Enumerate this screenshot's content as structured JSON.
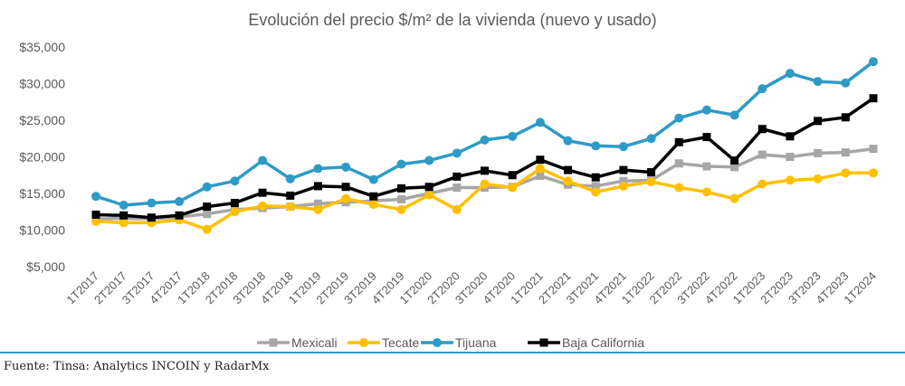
{
  "chart_data": {
    "type": "line",
    "title": "Evolución del precio $/m² de la vivienda (nuevo y usado)",
    "xlabel": "",
    "ylabel": "",
    "ylim": [
      5000,
      35000
    ],
    "yticks": [
      5000,
      10000,
      15000,
      20000,
      25000,
      30000,
      35000
    ],
    "ytick_labels": [
      "$5,000",
      "$10,000",
      "$15,000",
      "$20,000",
      "$25,000",
      "$30,000",
      "$35,000"
    ],
    "grid": false,
    "legend_position": "bottom",
    "categories": [
      "1T2017",
      "2T2017",
      "3T2017",
      "4T2017",
      "1T2018",
      "2T2018",
      "3T2018",
      "4T2018",
      "1T2019",
      "2T2019",
      "3T2019",
      "4T2019",
      "1T2020",
      "2T2020",
      "3T2020",
      "4T2020",
      "1T2021",
      "2T2021",
      "3T2021",
      "4T2021",
      "1T2022",
      "2T2022",
      "3T2022",
      "4T2022",
      "1T2023",
      "2T2023",
      "3T2023",
      "4T2023",
      "1T2024"
    ],
    "series": [
      {
        "name": "Mexicali",
        "color": "#a6a6a6",
        "marker": "square",
        "values": [
          11500,
          11600,
          11500,
          11800,
          12200,
          12800,
          13000,
          13200,
          13600,
          13800,
          14000,
          14200,
          15000,
          15800,
          15800,
          15900,
          17400,
          16200,
          16000,
          16700,
          16800,
          19100,
          18700,
          18600,
          20300,
          20000,
          20500,
          20600,
          21100
        ]
      },
      {
        "name": "Tecate",
        "color": "#ffc000",
        "marker": "circle",
        "values": [
          11200,
          11000,
          11000,
          11400,
          10100,
          12500,
          13300,
          13200,
          12800,
          14300,
          13500,
          12800,
          14800,
          12800,
          16300,
          15800,
          18400,
          16700,
          15200,
          16000,
          16600,
          15800,
          15200,
          14300,
          16300,
          16800,
          17000,
          17800,
          17800
        ]
      },
      {
        "name": "Tijuana",
        "color": "#2e9bc6",
        "marker": "circle",
        "values": [
          14600,
          13400,
          13700,
          13900,
          15900,
          16700,
          19500,
          17000,
          18400,
          18600,
          16900,
          19000,
          19500,
          20500,
          22300,
          22800,
          24700,
          22200,
          21500,
          21400,
          22500,
          25300,
          26400,
          25700,
          29300,
          31400,
          30300,
          30100,
          33000
        ]
      },
      {
        "name": "Baja California",
        "color": "#000000",
        "marker": "square",
        "values": [
          12100,
          12000,
          11700,
          12000,
          13200,
          13700,
          15100,
          14700,
          16000,
          15900,
          14600,
          15700,
          15900,
          17300,
          18100,
          17500,
          19600,
          18200,
          17200,
          18200,
          17900,
          22000,
          22700,
          19500,
          23800,
          22800,
          24900,
          25400,
          28000
        ]
      }
    ]
  },
  "footer": {
    "source": "Fuente: Tinsa: Analytics INCOIN y RadarMx",
    "rule_color": "#2e9bc6"
  }
}
